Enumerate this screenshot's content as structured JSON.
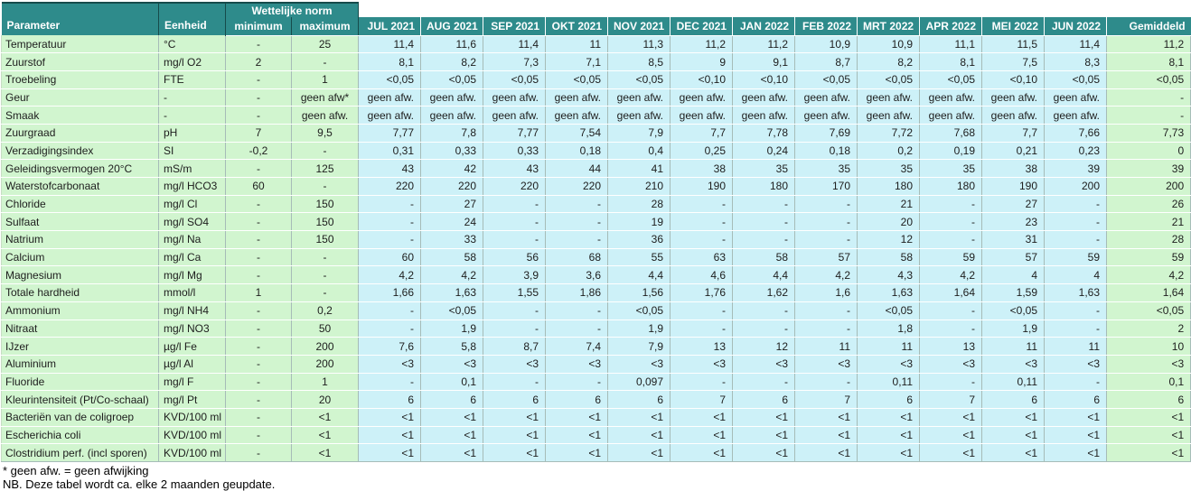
{
  "table": {
    "header": {
      "parameter": "Parameter",
      "eenheid": "Eenheid",
      "norm_group": "Wettelijke norm",
      "minimum": "minimum",
      "maximum": "maximum",
      "months": [
        "JUL 2021",
        "AUG 2021",
        "SEP 2021",
        "OKT 2021",
        "NOV 2021",
        "DEC 2021",
        "JAN 2022",
        "FEB 2022",
        "MRT 2022",
        "APR 2022",
        "MEI 2022",
        "JUN 2022"
      ],
      "average": "Gemiddeld"
    },
    "rows": [
      {
        "parameter": "Temperatuur",
        "eenheid": "°C",
        "min": "-",
        "max": "25",
        "values": [
          "11,4",
          "11,6",
          "11,4",
          "11",
          "11,3",
          "11,2",
          "11,2",
          "10,9",
          "10,9",
          "11,1",
          "11,5",
          "11,4"
        ],
        "gemiddeld": "11,2"
      },
      {
        "parameter": "Zuurstof",
        "eenheid": "mg/l O2",
        "min": "2",
        "max": "-",
        "values": [
          "8,1",
          "8,2",
          "7,3",
          "7,1",
          "8,5",
          "9",
          "9,1",
          "8,7",
          "8,2",
          "8,1",
          "7,5",
          "8,3"
        ],
        "gemiddeld": "8,1"
      },
      {
        "parameter": "Troebeling",
        "eenheid": "FTE",
        "min": "-",
        "max": "1",
        "values": [
          "<0,05",
          "<0,05",
          "<0,05",
          "<0,05",
          "<0,05",
          "<0,10",
          "<0,10",
          "<0,05",
          "<0,05",
          "<0,05",
          "<0,10",
          "<0,05"
        ],
        "gemiddeld": "<0,05"
      },
      {
        "parameter": "Geur",
        "eenheid": "-",
        "min": "-",
        "max": "geen afw*",
        "values": [
          "geen afw.",
          "geen afw.",
          "geen afw.",
          "geen afw.",
          "geen afw.",
          "geen afw.",
          "geen afw.",
          "geen afw.",
          "geen afw.",
          "geen afw.",
          "geen afw.",
          "geen afw."
        ],
        "gemiddeld": "-"
      },
      {
        "parameter": "Smaak",
        "eenheid": "-",
        "min": "-",
        "max": "geen afw.",
        "values": [
          "geen afw.",
          "geen afw.",
          "geen afw.",
          "geen afw.",
          "geen afw.",
          "geen afw.",
          "geen afw.",
          "geen afw.",
          "geen afw.",
          "geen afw.",
          "geen afw.",
          "geen afw."
        ],
        "gemiddeld": "-"
      },
      {
        "parameter": "Zuurgraad",
        "eenheid": "pH",
        "min": "7",
        "max": "9,5",
        "values": [
          "7,77",
          "7,8",
          "7,77",
          "7,54",
          "7,9",
          "7,7",
          "7,78",
          "7,69",
          "7,72",
          "7,68",
          "7,7",
          "7,66"
        ],
        "gemiddeld": "7,73"
      },
      {
        "parameter": "Verzadigingsindex",
        "eenheid": "SI",
        "min": "-0,2",
        "max": "-",
        "values": [
          "0,31",
          "0,33",
          "0,33",
          "0,18",
          "0,4",
          "0,25",
          "0,24",
          "0,18",
          "0,2",
          "0,19",
          "0,21",
          "0,23"
        ],
        "gemiddeld": "0"
      },
      {
        "parameter": "Geleidingsvermogen 20°C",
        "eenheid": "mS/m",
        "min": "-",
        "max": "125",
        "values": [
          "43",
          "42",
          "43",
          "44",
          "41",
          "38",
          "35",
          "35",
          "35",
          "35",
          "38",
          "39"
        ],
        "gemiddeld": "39"
      },
      {
        "parameter": "Waterstofcarbonaat",
        "eenheid": "mg/l HCO3",
        "min": "60",
        "max": "-",
        "values": [
          "220",
          "220",
          "220",
          "220",
          "210",
          "190",
          "180",
          "170",
          "180",
          "180",
          "190",
          "200"
        ],
        "gemiddeld": "200"
      },
      {
        "parameter": "Chloride",
        "eenheid": "mg/l Cl",
        "min": "-",
        "max": "150",
        "values": [
          "-",
          "27",
          "-",
          "-",
          "28",
          "-",
          "-",
          "-",
          "21",
          "-",
          "27",
          "-"
        ],
        "gemiddeld": "26"
      },
      {
        "parameter": "Sulfaat",
        "eenheid": "mg/l SO4",
        "min": "-",
        "max": "150",
        "values": [
          "-",
          "24",
          "-",
          "-",
          "19",
          "-",
          "-",
          "-",
          "20",
          "-",
          "23",
          "-"
        ],
        "gemiddeld": "21"
      },
      {
        "parameter": "Natrium",
        "eenheid": "mg/l Na",
        "min": "-",
        "max": "150",
        "values": [
          "-",
          "33",
          "-",
          "-",
          "36",
          "-",
          "-",
          "-",
          "12",
          "-",
          "31",
          "-"
        ],
        "gemiddeld": "28"
      },
      {
        "parameter": "Calcium",
        "eenheid": "mg/l Ca",
        "min": "-",
        "max": "-",
        "values": [
          "60",
          "58",
          "56",
          "68",
          "55",
          "63",
          "58",
          "57",
          "58",
          "59",
          "57",
          "59"
        ],
        "gemiddeld": "59"
      },
      {
        "parameter": "Magnesium",
        "eenheid": "mg/l Mg",
        "min": "-",
        "max": "-",
        "values": [
          "4,2",
          "4,2",
          "3,9",
          "3,6",
          "4,4",
          "4,6",
          "4,4",
          "4,2",
          "4,3",
          "4,2",
          "4",
          "4"
        ],
        "gemiddeld": "4,2"
      },
      {
        "parameter": "Totale hardheid",
        "eenheid": "mmol/l",
        "min": "1",
        "max": "-",
        "values": [
          "1,66",
          "1,63",
          "1,55",
          "1,86",
          "1,56",
          "1,76",
          "1,62",
          "1,6",
          "1,63",
          "1,64",
          "1,59",
          "1,63"
        ],
        "gemiddeld": "1,64"
      },
      {
        "parameter": "Ammonium",
        "eenheid": "mg/l NH4",
        "min": "-",
        "max": "0,2",
        "values": [
          "-",
          "<0,05",
          "-",
          "-",
          "<0,05",
          "-",
          "-",
          "-",
          "<0,05",
          "-",
          "<0,05",
          "-"
        ],
        "gemiddeld": "<0,05"
      },
      {
        "parameter": "Nitraat",
        "eenheid": "mg/l NO3",
        "min": "-",
        "max": "50",
        "values": [
          "-",
          "1,9",
          "-",
          "-",
          "1,9",
          "-",
          "-",
          "-",
          "1,8",
          "-",
          "1,9",
          "-"
        ],
        "gemiddeld": "2"
      },
      {
        "parameter": "IJzer",
        "eenheid": "µg/l Fe",
        "min": "-",
        "max": "200",
        "values": [
          "7,6",
          "5,8",
          "8,7",
          "7,4",
          "7,9",
          "13",
          "12",
          "11",
          "11",
          "13",
          "11",
          "11"
        ],
        "gemiddeld": "10"
      },
      {
        "parameter": "Aluminium",
        "eenheid": "µg/l Al",
        "min": "-",
        "max": "200",
        "values": [
          "<3",
          "<3",
          "<3",
          "<3",
          "<3",
          "<3",
          "<3",
          "<3",
          "<3",
          "<3",
          "<3",
          "<3"
        ],
        "gemiddeld": "<3"
      },
      {
        "parameter": "Fluoride",
        "eenheid": "mg/l F",
        "min": "-",
        "max": "1",
        "values": [
          "-",
          "0,1",
          "-",
          "-",
          "0,097",
          "-",
          "-",
          "-",
          "0,11",
          "-",
          "0,11",
          "-"
        ],
        "gemiddeld": "0,1"
      },
      {
        "parameter": "Kleurintensiteit (Pt/Co-schaal)",
        "eenheid": "mg/l Pt",
        "min": "-",
        "max": "20",
        "values": [
          "6",
          "6",
          "6",
          "6",
          "6",
          "7",
          "6",
          "7",
          "6",
          "7",
          "6",
          "6"
        ],
        "gemiddeld": "6"
      },
      {
        "parameter": "Bacteriën van de coligroep",
        "eenheid": "KVD/100 ml",
        "min": "-",
        "max": "<1",
        "values": [
          "<1",
          "<1",
          "<1",
          "<1",
          "<1",
          "<1",
          "<1",
          "<1",
          "<1",
          "<1",
          "<1",
          "<1"
        ],
        "gemiddeld": "<1"
      },
      {
        "parameter": "Escherichia coli",
        "eenheid": "KVD/100 ml",
        "min": "-",
        "max": "<1",
        "values": [
          "<1",
          "<1",
          "<1",
          "<1",
          "<1",
          "<1",
          "<1",
          "<1",
          "<1",
          "<1",
          "<1",
          "<1"
        ],
        "gemiddeld": "<1"
      },
      {
        "parameter": "Clostridium perf. (incl sporen)",
        "eenheid": "KVD/100 ml",
        "min": "-",
        "max": "<1",
        "values": [
          "<1",
          "<1",
          "<1",
          "<1",
          "<1",
          "<1",
          "<1",
          "<1",
          "<1",
          "<1",
          "<1",
          "<1"
        ],
        "gemiddeld": "<1"
      }
    ]
  },
  "footnotes": [
    "* geen afw. = geen afwijking",
    "NB. Deze tabel wordt ca. elke 2 maanden geupdate."
  ],
  "colors": {
    "header_teal": "#2e8b8b",
    "norm_green": "#d1f5cf",
    "month_cyan": "#cdf1f8",
    "grid_line": "#a6bcb8"
  }
}
